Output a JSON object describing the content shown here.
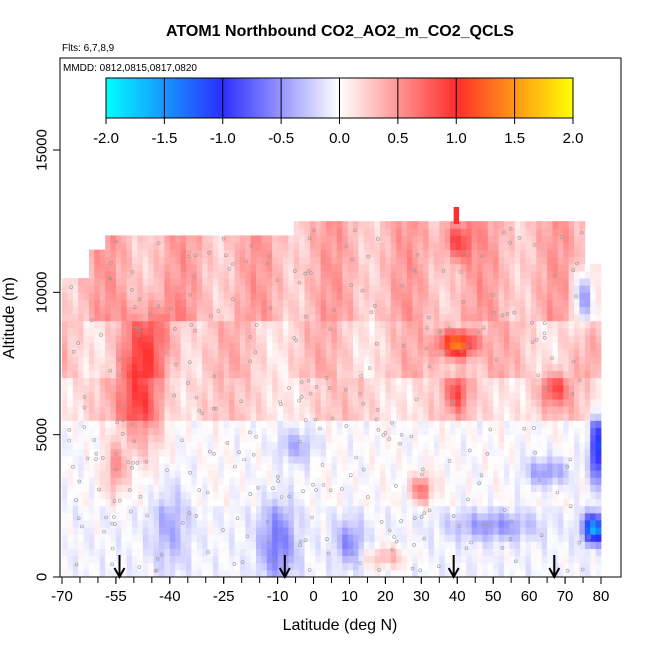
{
  "chart_data": {
    "type": "heatmap",
    "title": "ATOM1 Northbound CO2_AO2_m_CO2_QCLS",
    "subtitle_flights": "Flts: 6,7,8,9",
    "subtitle_dates": "MMDD: 0812,0815,0817,0820",
    "xlabel": "Latitude (deg N)",
    "ylabel": "Altitude (m)",
    "xlim": [
      -70,
      82
    ],
    "ylim": [
      0,
      17500
    ],
    "x_ticks": [
      "-70",
      "-55",
      "-40",
      "-25",
      "-10",
      "0",
      "10",
      "20",
      "30",
      "40",
      "50",
      "60",
      "70",
      "80"
    ],
    "x_tick_values": [
      -70,
      -55,
      -40,
      -25,
      -10,
      0,
      10,
      20,
      30,
      40,
      50,
      60,
      70,
      80
    ],
    "y_ticks": [
      "0",
      "5000",
      "10000",
      "15000"
    ],
    "y_tick_values": [
      0,
      5000,
      10000,
      15000
    ],
    "colorbar": {
      "range": [
        -2.0,
        2.0
      ],
      "ticks": [
        "-2.0",
        "-1.5",
        "-1.0",
        "-0.5",
        "0.0",
        "0.5",
        "1.0",
        "1.5",
        "2.0"
      ],
      "tick_values": [
        -2.0,
        -1.5,
        -1.0,
        -0.5,
        0.0,
        0.5,
        1.0,
        1.5,
        2.0
      ],
      "colors": [
        "#00ffff",
        "#2d2dff",
        "#ffffff",
        "#ff2d2d",
        "#ffff00"
      ]
    },
    "arrow_latitudes": [
      -54,
      -8,
      39,
      67
    ],
    "grid": false
  }
}
